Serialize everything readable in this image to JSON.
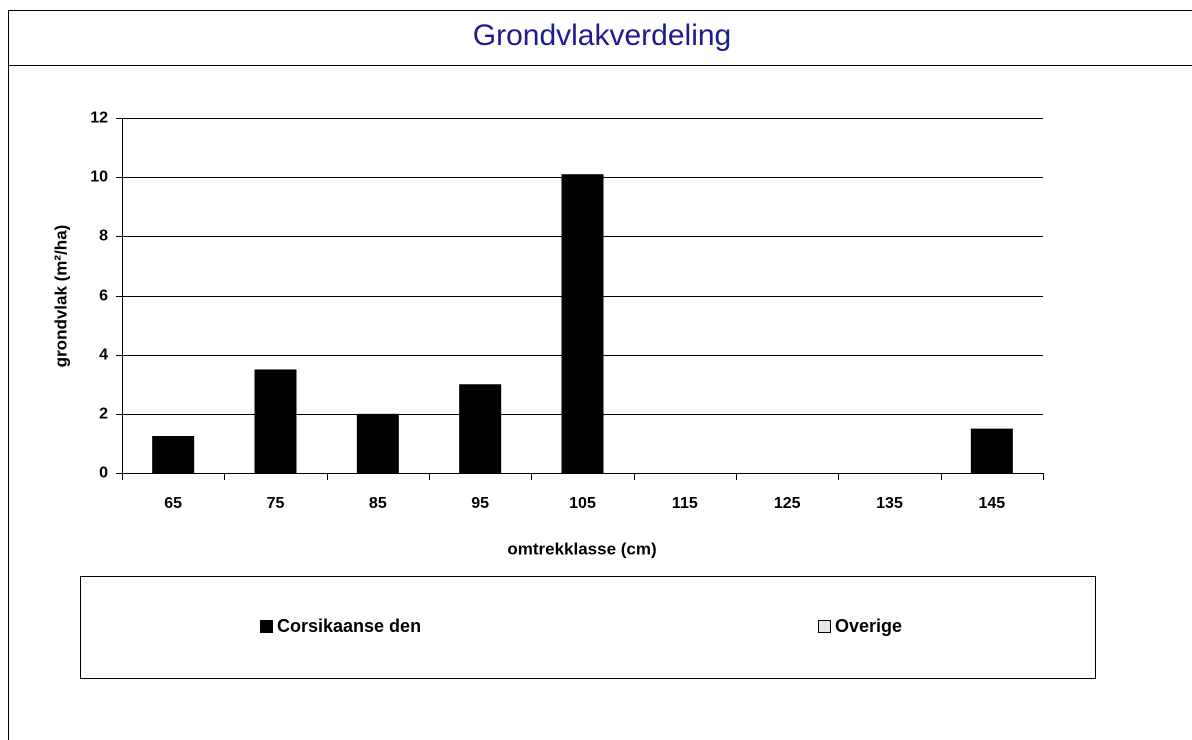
{
  "chart_data": {
    "type": "bar",
    "title": "Grondvlakverdeling",
    "x_label": "omtrekklasse (cm)",
    "y_label": "grondvlak (m²/ha)",
    "categories": [
      "65",
      "75",
      "85",
      "95",
      "105",
      "115",
      "125",
      "135",
      "145"
    ],
    "series": [
      {
        "name": "Corsikaanse den",
        "color": "#000000",
        "values": [
          1.25,
          3.5,
          2.0,
          3.0,
          10.1,
          0,
          0,
          0,
          1.5
        ]
      },
      {
        "name": "Overige",
        "color": "#e6e6e6",
        "values": [
          0,
          0,
          0,
          0,
          0,
          0,
          0,
          0,
          0
        ]
      }
    ],
    "ylim": [
      0,
      12
    ],
    "yticks": [
      0,
      2,
      4,
      6,
      8,
      10,
      12
    ],
    "grid": true,
    "stacked": true
  }
}
